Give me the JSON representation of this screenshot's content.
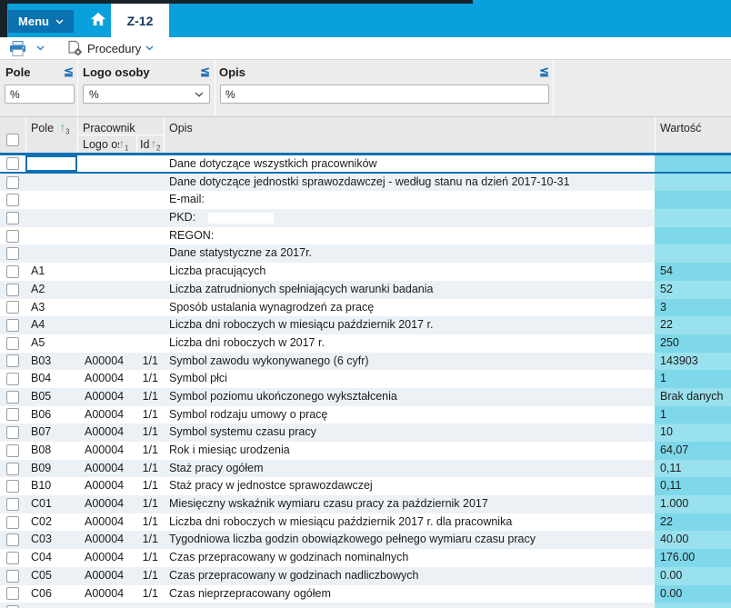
{
  "topbar": {
    "menu_label": "Menu",
    "tab_label": "Z-12"
  },
  "toolbar": {
    "procedures_label": "Procedury"
  },
  "filters": {
    "pole": {
      "label": "Pole",
      "operator": "≦",
      "value": "%"
    },
    "logo": {
      "label": "Logo osoby",
      "operator": "≦",
      "value": "%"
    },
    "opis": {
      "label": "Opis",
      "operator": "≦",
      "value": "%"
    }
  },
  "table": {
    "header": {
      "pole": "Pole",
      "pole_sort": "3",
      "pracownik": "Pracownik",
      "logo": "Logo oso",
      "logo_sort": "1",
      "id": "Id",
      "id_sort": "2",
      "opis": "Opis",
      "wartosc": "Wartość"
    },
    "rows": [
      {
        "pole": "",
        "logo": "",
        "id": "",
        "opis": "Dane dotyczące wszystkich pracowników",
        "wartosc": "",
        "selected": true
      },
      {
        "pole": "",
        "logo": "",
        "id": "",
        "opis": "Dane dotyczące jednostki sprawozdawczej - według stanu na dzień 2017-10-31",
        "wartosc": ""
      },
      {
        "pole": "",
        "logo": "",
        "id": "",
        "opis": "E-mail:",
        "wartosc": ""
      },
      {
        "pole": "",
        "logo": "",
        "id": "",
        "opis": "PKD:",
        "wartosc": "",
        "redacted": true
      },
      {
        "pole": "",
        "logo": "",
        "id": "",
        "opis": "REGON:",
        "wartosc": ""
      },
      {
        "pole": "",
        "logo": "",
        "id": "",
        "opis": "Dane statystyczne za 2017r.",
        "wartosc": ""
      },
      {
        "pole": "A1",
        "logo": "",
        "id": "",
        "opis": "Liczba pracujących",
        "wartosc": "54"
      },
      {
        "pole": "A2",
        "logo": "",
        "id": "",
        "opis": "Liczba zatrudnionych spełniających warunki badania",
        "wartosc": "52"
      },
      {
        "pole": "A3",
        "logo": "",
        "id": "",
        "opis": "Sposób ustalania wynagrodzeń za pracę",
        "wartosc": "3"
      },
      {
        "pole": "A4",
        "logo": "",
        "id": "",
        "opis": "Liczba dni roboczych w miesiącu październik 2017 r.",
        "wartosc": "22"
      },
      {
        "pole": "A5",
        "logo": "",
        "id": "",
        "opis": "Liczba dni roboczych w 2017 r.",
        "wartosc": "250"
      },
      {
        "pole": "B03",
        "logo": "A00004",
        "id": "1/1",
        "opis": "Symbol zawodu wykonywanego (6 cyfr)",
        "wartosc": "143903"
      },
      {
        "pole": "B04",
        "logo": "A00004",
        "id": "1/1",
        "opis": "Symbol płci",
        "wartosc": "1"
      },
      {
        "pole": "B05",
        "logo": "A00004",
        "id": "1/1",
        "opis": "Symbol poziomu ukończonego wykształcenia",
        "wartosc": "Brak danych"
      },
      {
        "pole": "B06",
        "logo": "A00004",
        "id": "1/1",
        "opis": "Symbol rodzaju umowy o pracę",
        "wartosc": "1"
      },
      {
        "pole": "B07",
        "logo": "A00004",
        "id": "1/1",
        "opis": "Symbol systemu czasu pracy",
        "wartosc": "10"
      },
      {
        "pole": "B08",
        "logo": "A00004",
        "id": "1/1",
        "opis": "Rok i miesiąc urodzenia",
        "wartosc": "64,07"
      },
      {
        "pole": "B09",
        "logo": "A00004",
        "id": "1/1",
        "opis": "Staż pracy ogółem",
        "wartosc": "0,11"
      },
      {
        "pole": "B10",
        "logo": "A00004",
        "id": "1/1",
        "opis": "Staż pracy w jednostce sprawozdawczej",
        "wartosc": "0,11"
      },
      {
        "pole": "C01",
        "logo": "A00004",
        "id": "1/1",
        "opis": "Miesięczny wskaźnik wymiaru czasu pracy za październik 2017",
        "wartosc": "1.000"
      },
      {
        "pole": "C02",
        "logo": "A00004",
        "id": "1/1",
        "opis": "Liczba dni roboczych w miesiącu październik 2017 r. dla pracownika",
        "wartosc": "22"
      },
      {
        "pole": "C03",
        "logo": "A00004",
        "id": "1/1",
        "opis": "Tygodniowa liczba godzin obowiązkowego pełnego wymiaru czasu pracy",
        "wartosc": "40.00"
      },
      {
        "pole": "C04",
        "logo": "A00004",
        "id": "1/1",
        "opis": "Czas przepracowany w godzinach nominalnych",
        "wartosc": "176.00"
      },
      {
        "pole": "C05",
        "logo": "A00004",
        "id": "1/1",
        "opis": "Czas przepracowany w godzinach nadliczbowych",
        "wartosc": "0.00"
      },
      {
        "pole": "C06",
        "logo": "A00004",
        "id": "1/1",
        "opis": "Czas nieprzepracowany ogółem",
        "wartosc": "0.00"
      },
      {
        "pole": "",
        "logo": "",
        "id": "",
        "opis": "",
        "wartosc": ""
      }
    ]
  },
  "colors": {
    "bar_blue": "#09a0dc",
    "menu_blue": "#0a72b0",
    "accent_blue": "#1070b4",
    "value_cyan": "#7ed8e9",
    "value_cyan_alt": "#99e1ee",
    "sort_green": "#3ba06b"
  }
}
